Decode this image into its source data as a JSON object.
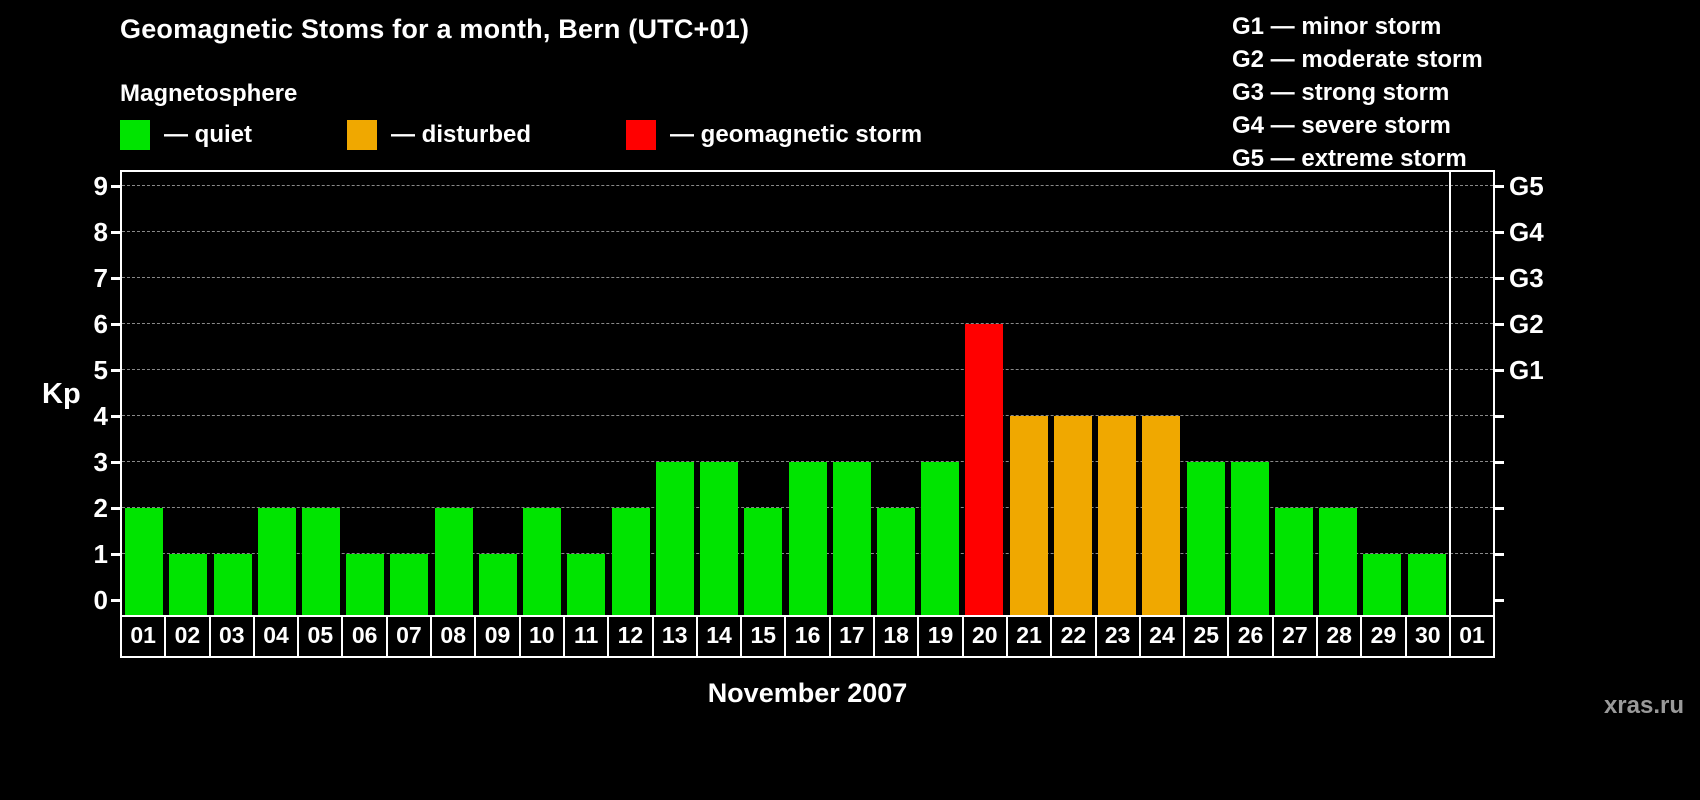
{
  "title": "Geomagnetic Stoms for a month, Bern (UTC+01)",
  "legend": {
    "heading": "Magnetosphere",
    "items": [
      {
        "name": "quiet",
        "label": "— quiet",
        "color": "#00e400"
      },
      {
        "name": "disturbed",
        "label": "— disturbed",
        "color": "#f0a800"
      },
      {
        "name": "storm",
        "label": "— geomagnetic storm",
        "color": "#ff0000"
      }
    ]
  },
  "storm_scale_legend": [
    "G1 — minor storm",
    "G2 — moderate storm",
    "G3 — strong storm",
    "G4 — severe storm",
    "G5 — extreme storm"
  ],
  "watermark": "xras.ru",
  "chart_data": {
    "type": "bar",
    "title": "Geomagnetic Stoms for a month, Bern (UTC+01)",
    "xlabel": "November 2007",
    "ylabel": "Kp",
    "ylim": [
      0,
      9
    ],
    "yticks": [
      0,
      1,
      2,
      3,
      4,
      5,
      6,
      7,
      8,
      9
    ],
    "right_axis_ticks": [
      {
        "label": "G1",
        "value": 5
      },
      {
        "label": "G2",
        "value": 6
      },
      {
        "label": "G3",
        "value": 7
      },
      {
        "label": "G4",
        "value": 8
      },
      {
        "label": "G5",
        "value": 9
      }
    ],
    "grid": "horizontal-dashed",
    "legend_position": "top",
    "categories": [
      "01",
      "02",
      "03",
      "04",
      "05",
      "06",
      "07",
      "08",
      "09",
      "10",
      "11",
      "12",
      "13",
      "14",
      "15",
      "16",
      "17",
      "18",
      "19",
      "20",
      "21",
      "22",
      "23",
      "24",
      "25",
      "26",
      "27",
      "28",
      "29",
      "30",
      "01"
    ],
    "values": [
      2,
      1,
      1,
      2,
      2,
      1,
      1,
      2,
      1,
      2,
      1,
      2,
      3,
      3,
      2,
      3,
      3,
      2,
      3,
      6,
      4,
      4,
      4,
      4,
      3,
      3,
      2,
      2,
      1,
      1,
      null
    ],
    "statuses": [
      "quiet",
      "quiet",
      "quiet",
      "quiet",
      "quiet",
      "quiet",
      "quiet",
      "quiet",
      "quiet",
      "quiet",
      "quiet",
      "quiet",
      "quiet",
      "quiet",
      "quiet",
      "quiet",
      "quiet",
      "quiet",
      "quiet",
      "storm",
      "disturbed",
      "disturbed",
      "disturbed",
      "disturbed",
      "quiet",
      "quiet",
      "quiet",
      "quiet",
      "quiet",
      "quiet",
      null
    ],
    "colors": {
      "quiet": "#00e400",
      "disturbed": "#f0a800",
      "storm": "#ff0000"
    }
  }
}
